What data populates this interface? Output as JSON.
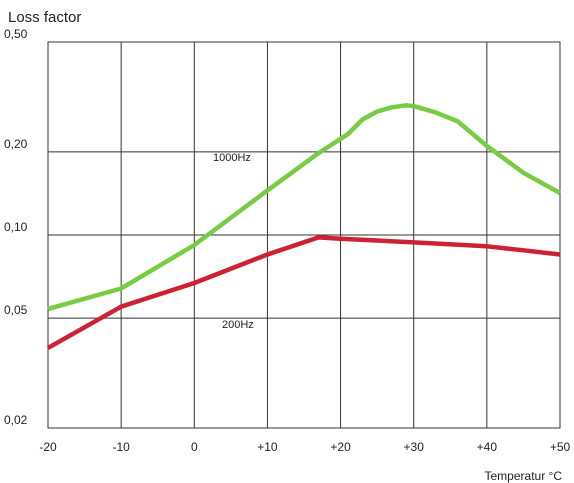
{
  "chart_data": {
    "type": "line",
    "title": "Loss factor",
    "xlabel": "Temperatur °C",
    "ylabel": "",
    "xlim": [
      -20,
      50
    ],
    "ylim": [
      0.02,
      0.5
    ],
    "y_scale": "log",
    "grid": true,
    "x_ticks": [
      -20,
      -10,
      0,
      10,
      20,
      30,
      40,
      50
    ],
    "x_tick_labels": [
      "-20",
      "-10",
      "0",
      "+10",
      "+20",
      "+30",
      "+40",
      "+50"
    ],
    "y_ticks": [
      0.02,
      0.05,
      0.1,
      0.2,
      0.5
    ],
    "y_tick_labels": [
      "0,02",
      "0,05",
      "0,10",
      "0,20",
      "0,50"
    ],
    "series": [
      {
        "name": "1000Hz",
        "color": "#77cc44",
        "x": [
          -20,
          -10,
          0,
          10,
          17,
          21,
          23,
          25,
          27,
          29,
          30,
          33,
          36,
          40,
          45,
          50
        ],
        "y": [
          0.054,
          0.064,
          0.092,
          0.145,
          0.198,
          0.232,
          0.262,
          0.28,
          0.29,
          0.295,
          0.293,
          0.278,
          0.258,
          0.21,
          0.168,
          0.142
        ]
      },
      {
        "name": "200Hz",
        "color": "#cc2233",
        "x": [
          -20,
          -10,
          0,
          10,
          17,
          20,
          30,
          40,
          45,
          50
        ],
        "y": [
          0.039,
          0.055,
          0.067,
          0.085,
          0.098,
          0.097,
          0.094,
          0.091,
          0.088,
          0.085
        ]
      }
    ]
  }
}
